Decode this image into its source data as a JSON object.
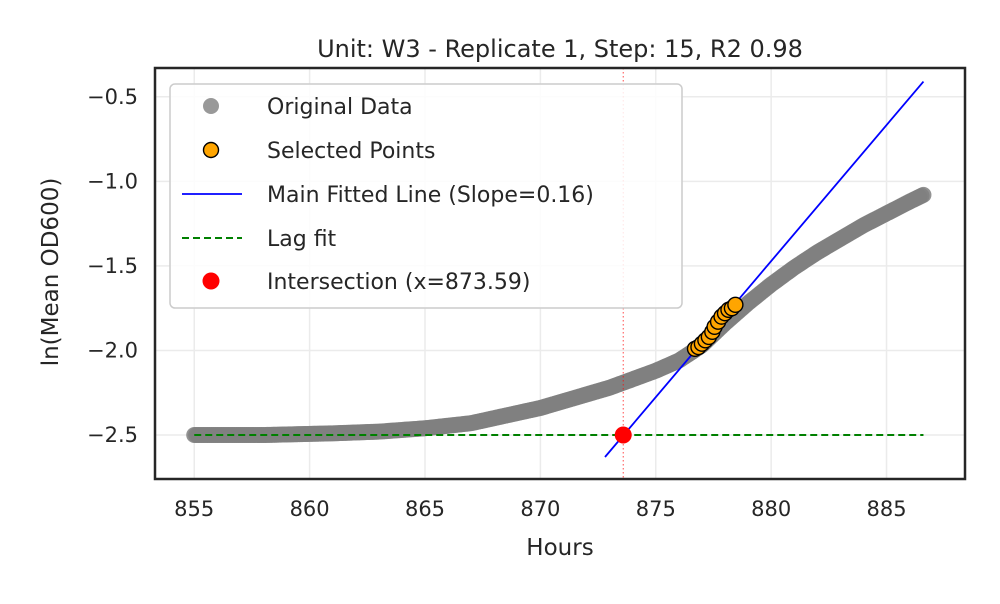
{
  "chart_data": {
    "type": "scatter",
    "title": "Unit: W3 - Replicate 1, Step: 15, R2 0.98",
    "xlabel": "Hours",
    "ylabel": "ln(Mean OD600)",
    "xlim": [
      853.3,
      888.4
    ],
    "ylim": [
      -2.76,
      -0.33
    ],
    "xticks": [
      855,
      860,
      865,
      870,
      875,
      880,
      885
    ],
    "xtick_labels": [
      "855",
      "860",
      "865",
      "870",
      "875",
      "880",
      "885"
    ],
    "yticks": [
      -2.5,
      -2.0,
      -1.5,
      -1.0,
      -0.5
    ],
    "ytick_labels": [
      "−2.5",
      "−2.0",
      "−1.5",
      "−1.0",
      "−0.5"
    ],
    "grid": true,
    "legend_position": "upper-left",
    "colors": {
      "original": "#808080",
      "selected": "#ffa500",
      "main_fit": "#0000ff",
      "lag_fit": "#008000",
      "intersection": "#ff0000"
    },
    "legend": [
      {
        "label": "Original Data",
        "kind": "marker-gray"
      },
      {
        "label": "Selected Points",
        "kind": "marker-orange"
      },
      {
        "label": "Main Fitted Line (Slope=0.16)",
        "kind": "line-blue"
      },
      {
        "label": "Lag fit",
        "kind": "dash-green"
      },
      {
        "label": "Intersection (x=873.59)",
        "kind": "marker-red"
      }
    ],
    "original_data": {
      "x_start": 855.0,
      "x_end": 886.6,
      "n_points": 380,
      "curve_x": [
        855.0,
        858.0,
        861.0,
        863.0,
        865.0,
        867.0,
        868.0,
        869.0,
        870.0,
        871.0,
        872.0,
        873.0,
        874.0,
        875.0,
        876.0,
        877.0,
        878.0,
        879.0,
        880.0,
        881.0,
        882.0,
        883.0,
        884.0,
        885.0,
        886.0,
        886.6
      ],
      "curve_y": [
        -2.5,
        -2.5,
        -2.49,
        -2.48,
        -2.46,
        -2.43,
        -2.4,
        -2.37,
        -2.34,
        -2.3,
        -2.26,
        -2.22,
        -2.17,
        -2.12,
        -2.06,
        -1.97,
        -1.84,
        -1.72,
        -1.61,
        -1.51,
        -1.42,
        -1.34,
        -1.26,
        -1.19,
        -1.12,
        -1.08
      ]
    },
    "selected_points": {
      "x": [
        876.7,
        876.85,
        877.0,
        877.15,
        877.3,
        877.45,
        877.55,
        877.7,
        877.85,
        878.0,
        878.15,
        878.3,
        878.45
      ],
      "y": [
        -1.99,
        -1.98,
        -1.96,
        -1.94,
        -1.92,
        -1.89,
        -1.86,
        -1.83,
        -1.8,
        -1.78,
        -1.76,
        -1.75,
        -1.73
      ]
    },
    "main_fit": {
      "x": [
        872.8,
        886.6
      ],
      "y": [
        -2.63,
        -0.41
      ]
    },
    "lag_fit": {
      "x": [
        855.0,
        886.6
      ],
      "y": [
        -2.5,
        -2.5
      ]
    },
    "intersection": {
      "x": 873.59,
      "y": -2.5
    },
    "vline_x": 873.59
  }
}
